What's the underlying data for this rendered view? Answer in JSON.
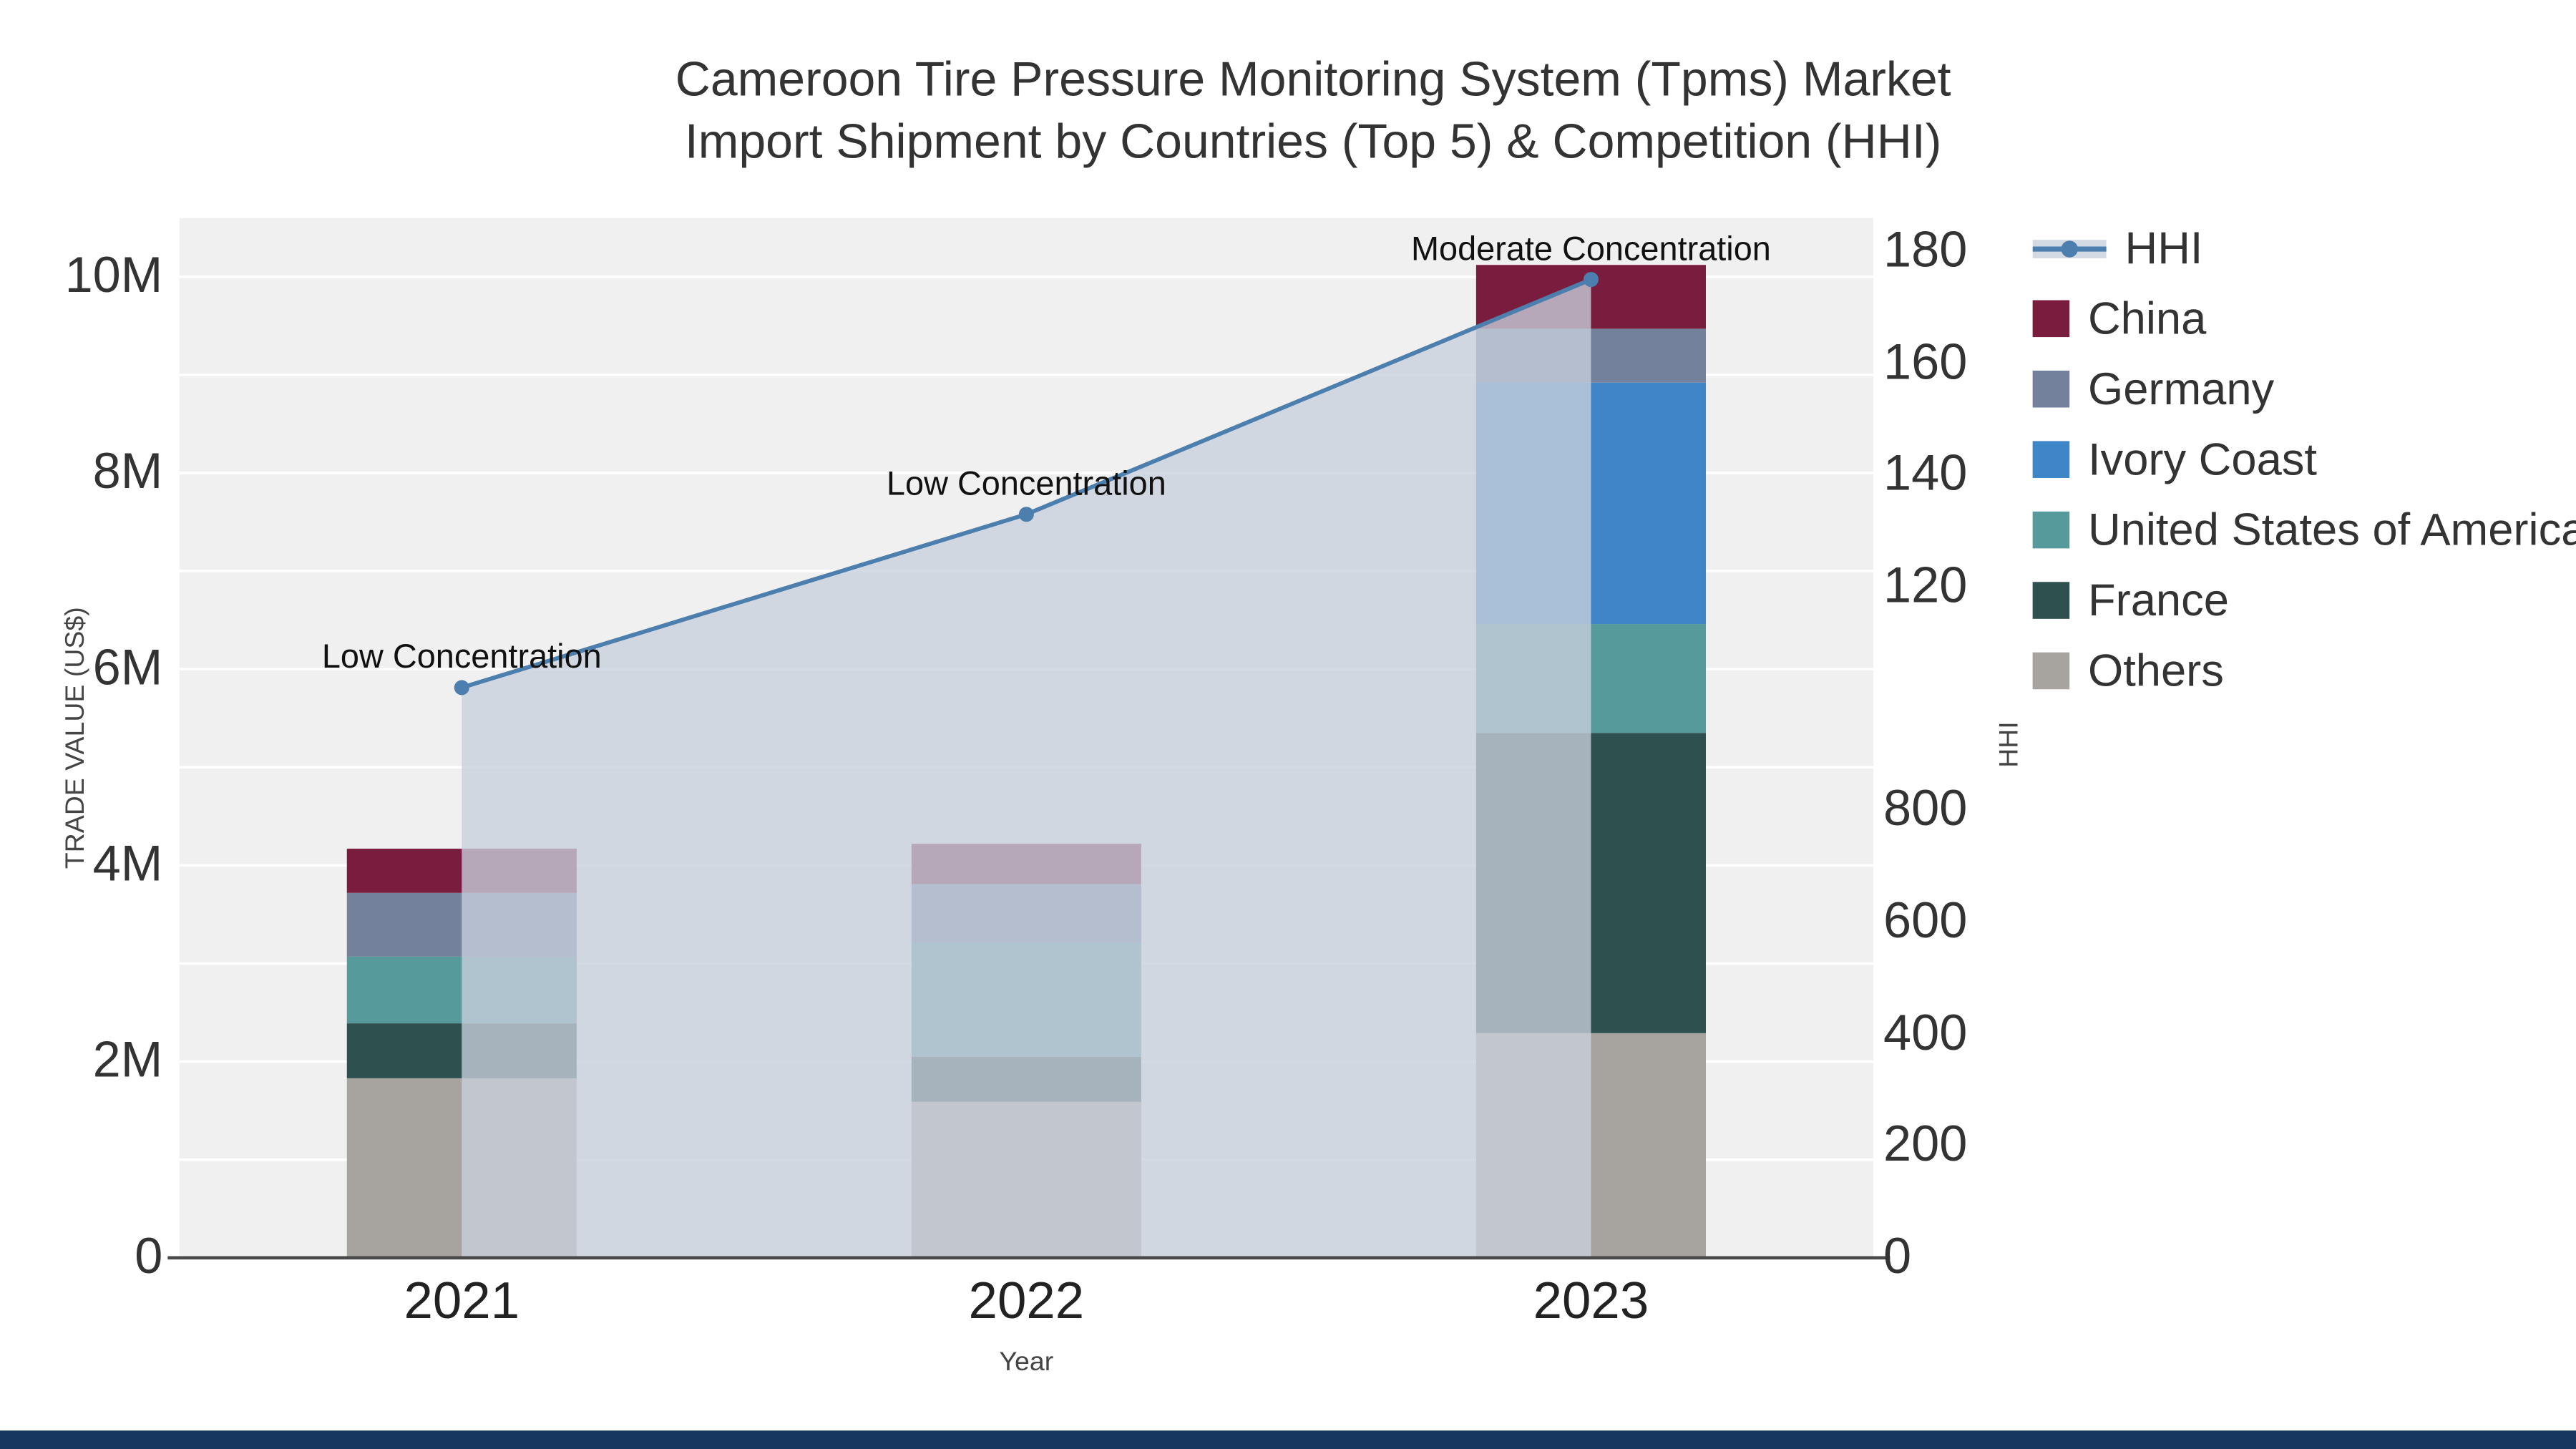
{
  "title": {
    "line1": "Cameroon Tire Pressure Monitoring System (Tpms) Market",
    "line2": "Import Shipment by Countries (Top 5) & Competition (HHI)"
  },
  "axes": {
    "y_left": {
      "label": "TRADE VALUE (US$)",
      "ticks": [
        "0",
        "2M",
        "4M",
        "6M",
        "8M",
        "10M"
      ],
      "tick_values": [
        0,
        2000000,
        4000000,
        6000000,
        8000000,
        10000000
      ]
    },
    "y_right": {
      "label": "HHI",
      "ticks_top_down": [
        "180",
        "160",
        "140",
        "120",
        "",
        "800",
        "600",
        "400",
        "200",
        "0"
      ]
    },
    "x": {
      "label": "Year",
      "categories": [
        "2021",
        "2022",
        "2023"
      ]
    }
  },
  "chart_data": {
    "type": "bar",
    "subtype": "stacked-bars-with-line-area-on-secondary-axis",
    "title": "Cameroon Tire Pressure Monitoring System (Tpms) Market Import Shipment by Countries (Top 5) & Competition (HHI)",
    "xlabel": "Year",
    "ylabel_left": "TRADE VALUE (US$)",
    "ylabel_right": "HHI",
    "y_left_range": [
      0,
      10000000
    ],
    "y_right_range": [
      0,
      1800
    ],
    "grid": true,
    "legend_position": "right",
    "categories": [
      "2021",
      "2022",
      "2023"
    ],
    "series": [
      {
        "name": "Others",
        "color": "#a7a39f",
        "values": [
          1830000,
          1590000,
          2290000
        ]
      },
      {
        "name": "France",
        "color": "#2e504e",
        "values": [
          560000,
          460000,
          3060000
        ]
      },
      {
        "name": "United States of America",
        "color": "#579a9b",
        "values": [
          680000,
          1160000,
          1110000
        ]
      },
      {
        "name": "Ivory Coast",
        "color": "#3f86c8",
        "values": [
          0,
          0,
          2460000
        ]
      },
      {
        "name": "Germany",
        "color": "#74819c",
        "values": [
          650000,
          600000,
          550000
        ]
      },
      {
        "name": "China",
        "color": "#7a1c3d",
        "values": [
          450000,
          410000,
          650000
        ]
      }
    ],
    "line_series": {
      "name": "HHI",
      "color": "#4d7fae",
      "fill": "rgba(200,208,220,0.78)",
      "axis": "right",
      "values": [
        1020,
        1330,
        1750
      ]
    },
    "annotations": [
      "Low Concentration",
      "Low Concentration",
      "Moderate Concentration"
    ],
    "plot_background": "#f0f0f0",
    "footer_bar_color": "#173760"
  },
  "legend": {
    "items": [
      {
        "label": "HHI",
        "type": "line",
        "color": "#4d7fae"
      },
      {
        "label": "China",
        "type": "swatch",
        "color": "#7a1c3d"
      },
      {
        "label": "Germany",
        "type": "swatch",
        "color": "#74819c"
      },
      {
        "label": "Ivory Coast",
        "type": "swatch",
        "color": "#3f86c8"
      },
      {
        "label": "United States of America",
        "type": "swatch",
        "color": "#579a9b"
      },
      {
        "label": "France",
        "type": "swatch",
        "color": "#2e504e"
      },
      {
        "label": "Others",
        "type": "swatch",
        "color": "#a7a39f"
      }
    ]
  }
}
